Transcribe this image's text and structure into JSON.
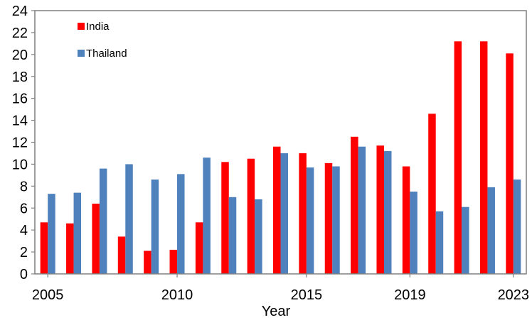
{
  "chart_data": {
    "type": "bar",
    "title": "",
    "xlabel": "Year",
    "ylabel": "",
    "ylim": [
      0,
      24
    ],
    "yticks": [
      0,
      2,
      4,
      6,
      8,
      10,
      12,
      14,
      16,
      18,
      20,
      22,
      24
    ],
    "categories": [
      2005,
      2006,
      2007,
      2008,
      2009,
      2010,
      2011,
      2012,
      2013,
      2014,
      2015,
      2016,
      2017,
      2018,
      2019,
      2020,
      2021,
      2022,
      2023
    ],
    "xtick_labels": [
      {
        "year": 2005,
        "label": "2005"
      },
      {
        "year": 2010,
        "label": "2010"
      },
      {
        "year": 2015,
        "label": "2015"
      },
      {
        "year": 2019,
        "label": "2019"
      },
      {
        "year": 2023,
        "label": "2023"
      }
    ],
    "series": [
      {
        "name": "India",
        "color": "#ff0000",
        "values": [
          4.7,
          4.6,
          6.4,
          3.4,
          2.1,
          2.2,
          4.7,
          10.2,
          10.5,
          11.6,
          11.0,
          10.1,
          12.5,
          11.7,
          9.8,
          14.6,
          21.2,
          21.2,
          20.1
        ]
      },
      {
        "name": "Thailand",
        "color": "#4f81bd",
        "values": [
          7.3,
          7.4,
          9.6,
          10.0,
          8.6,
          9.1,
          10.6,
          7.0,
          6.8,
          11.0,
          9.7,
          9.8,
          11.6,
          11.2,
          7.5,
          5.7,
          6.1,
          7.9,
          8.6
        ]
      }
    ],
    "legend_position": "top-left",
    "grid": false
  }
}
